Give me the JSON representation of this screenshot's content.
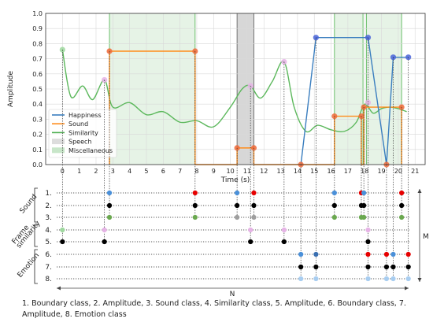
{
  "chart_data": {
    "type": "line",
    "xlabel": "Time (s)",
    "ylabel": "Amplitude",
    "xlim": [
      -1.0,
      21.6
    ],
    "ylim": [
      0.0,
      1.0
    ],
    "xticks": [
      "0",
      "1",
      "2",
      "3",
      "4",
      "5",
      "6",
      "7",
      "8",
      "9",
      "10",
      "11",
      "12",
      "13",
      "14",
      "15",
      "16",
      "17",
      "18",
      "19",
      "20",
      "21"
    ],
    "yticks": [
      "0.0",
      "0.1",
      "0.2",
      "0.3",
      "0.4",
      "0.5",
      "0.6",
      "0.7",
      "0.8",
      "0.9",
      "1.0"
    ],
    "grid": true,
    "legend_position": "middle-left",
    "legend": [
      {
        "label": "Happiness",
        "kind": "line",
        "color": "#3a7ebf"
      },
      {
        "label": "Sound",
        "kind": "line",
        "color": "#ff8c1a"
      },
      {
        "label": "Similarity",
        "kind": "line",
        "color": "#4caf50"
      },
      {
        "label": "Speech",
        "kind": "patch",
        "color": "#dddddd"
      },
      {
        "label": "Miscellaneous",
        "kind": "patch",
        "color": "#c8e6c9"
      }
    ],
    "regions": [
      {
        "kind": "Miscellaneous",
        "x0": 2.8,
        "x1": 7.9,
        "color": "#e3f2e3"
      },
      {
        "kind": "Speech",
        "x0": 10.4,
        "x1": 11.4,
        "color": "#d3d3d3"
      },
      {
        "kind": "Miscellaneous",
        "x0": 16.2,
        "x1": 17.9,
        "color": "#e3f2e3"
      },
      {
        "kind": "Miscellaneous",
        "x0": 18.1,
        "x1": 20.2,
        "color": "#e3f2e3"
      }
    ],
    "series": [
      {
        "name": "Similarity",
        "color": "#5cb85c",
        "smooth": true,
        "points": [
          [
            0,
            0.76
          ],
          [
            0.5,
            0.45
          ],
          [
            1.2,
            0.52
          ],
          [
            1.8,
            0.43
          ],
          [
            2.5,
            0.56
          ],
          [
            3,
            0.38
          ],
          [
            4,
            0.41
          ],
          [
            5,
            0.33
          ],
          [
            6,
            0.35
          ],
          [
            7,
            0.28
          ],
          [
            8,
            0.29
          ],
          [
            9,
            0.25
          ],
          [
            10,
            0.38
          ],
          [
            10.7,
            0.5
          ],
          [
            11.2,
            0.52
          ],
          [
            11.8,
            0.44
          ],
          [
            12.5,
            0.55
          ],
          [
            13.2,
            0.68
          ],
          [
            13.8,
            0.38
          ],
          [
            14.5,
            0.22
          ],
          [
            15.2,
            0.26
          ],
          [
            16,
            0.23
          ],
          [
            16.8,
            0.22
          ],
          [
            17.5,
            0.28
          ],
          [
            18,
            0.4
          ],
          [
            18.5,
            0.34
          ],
          [
            19,
            0.37
          ],
          [
            19.5,
            0.38
          ],
          [
            20,
            0.37
          ],
          [
            20.5,
            0.35
          ]
        ]
      },
      {
        "name": "Sound",
        "color": "#ff8c1a",
        "smooth": false,
        "points": [
          [
            2.8,
            0
          ],
          [
            2.8,
            0.75
          ],
          [
            7.9,
            0.75
          ],
          [
            7.9,
            0
          ],
          [
            10.4,
            0
          ],
          [
            10.4,
            0.11
          ],
          [
            11.4,
            0.11
          ],
          [
            11.4,
            0
          ],
          [
            16.2,
            0
          ],
          [
            16.2,
            0.32
          ],
          [
            17.8,
            0.32
          ],
          [
            17.8,
            0
          ],
          [
            17.95,
            0
          ],
          [
            17.95,
            0.38
          ],
          [
            20.2,
            0.38
          ],
          [
            20.2,
            0
          ]
        ]
      },
      {
        "name": "Happiness",
        "color": "#3a7ebf",
        "smooth": false,
        "points": [
          [
            14.2,
            0
          ],
          [
            15.1,
            0.84
          ],
          [
            18.2,
            0.84
          ],
          [
            19.3,
            0
          ],
          [
            19.7,
            0.71
          ],
          [
            20.6,
            0.71
          ]
        ]
      }
    ],
    "markers": [
      {
        "x": 0,
        "y": 0.76,
        "color": "#9fd89f"
      },
      {
        "x": 2.5,
        "y": 0.56,
        "color": "#e6b3e6"
      },
      {
        "x": 2.8,
        "y": 0.75,
        "color": "#ef6a3a"
      },
      {
        "x": 7.9,
        "y": 0.75,
        "color": "#ef6a3a"
      },
      {
        "x": 10.4,
        "y": 0.11,
        "color": "#ef6a3a"
      },
      {
        "x": 11.4,
        "y": 0.11,
        "color": "#ef6a3a"
      },
      {
        "x": 11.2,
        "y": 0.52,
        "color": "#e6b3e6"
      },
      {
        "x": 13.2,
        "y": 0.68,
        "color": "#e6b3e6"
      },
      {
        "x": 14.2,
        "y": 0,
        "color": "#ef6a3a"
      },
      {
        "x": 15.1,
        "y": 0.84,
        "color": "#4a64d8"
      },
      {
        "x": 16.2,
        "y": 0.32,
        "color": "#ef6a3a"
      },
      {
        "x": 17.8,
        "y": 0.32,
        "color": "#ef6a3a"
      },
      {
        "x": 17.95,
        "y": 0.38,
        "color": "#ef6a3a"
      },
      {
        "x": 18.2,
        "y": 0.84,
        "color": "#4a64d8"
      },
      {
        "x": 18.2,
        "y": 0.41,
        "color": "#e6b3e6"
      },
      {
        "x": 19.3,
        "y": 0,
        "color": "#ef6a3a"
      },
      {
        "x": 19.7,
        "y": 0.71,
        "color": "#4a64d8"
      },
      {
        "x": 20.2,
        "y": 0.38,
        "color": "#ef6a3a"
      },
      {
        "x": 20.6,
        "y": 0.71,
        "color": "#4a64d8"
      }
    ]
  },
  "diagram": {
    "groups": [
      {
        "label": "Sound",
        "rows": [
          "1.",
          "2.",
          "3."
        ]
      },
      {
        "label": "Frame\nsimilarity",
        "rows": [
          "4.",
          "5."
        ]
      },
      {
        "label": "Emotion",
        "rows": [
          "6.",
          "7.",
          "8."
        ]
      }
    ],
    "dimension_n": "N",
    "dimension_m": "M",
    "events": [
      {
        "x": 0,
        "dots": [
          null,
          null,
          null,
          "#9fd89f",
          "#000000",
          null,
          null,
          null
        ]
      },
      {
        "x": 2.5,
        "dots": [
          null,
          null,
          null,
          "#e6b3e6",
          "#000000",
          null,
          null,
          null
        ]
      },
      {
        "x": 2.8,
        "dots": [
          "#4a90d9",
          "#000000",
          "#6aa84f",
          null,
          null,
          null,
          null,
          null
        ]
      },
      {
        "x": 7.9,
        "dots": [
          "#e60000",
          "#000000",
          "#6aa84f",
          null,
          null,
          null,
          null,
          null
        ]
      },
      {
        "x": 10.4,
        "dots": [
          "#4a90d9",
          "#000000",
          "#9e9e9e",
          null,
          null,
          null,
          null,
          null
        ]
      },
      {
        "x": 11.2,
        "dots": [
          null,
          null,
          null,
          "#e6b3e6",
          "#000000",
          null,
          null,
          null
        ]
      },
      {
        "x": 11.4,
        "dots": [
          "#e60000",
          "#000000",
          "#9e9e9e",
          null,
          null,
          null,
          null,
          null
        ]
      },
      {
        "x": 13.2,
        "dots": [
          null,
          null,
          null,
          "#e6b3e6",
          "#000000",
          null,
          null,
          null
        ]
      },
      {
        "x": 14.2,
        "dots": [
          null,
          null,
          null,
          null,
          null,
          "#4a90d9",
          "#000000",
          "#a8cdf0"
        ]
      },
      {
        "x": 15.1,
        "dots": [
          null,
          null,
          null,
          null,
          null,
          "#3a6fb0",
          "#000000",
          "#a8cdf0"
        ]
      },
      {
        "x": 16.2,
        "dots": [
          "#4a90d9",
          "#000000",
          "#6aa84f",
          null,
          null,
          null,
          null,
          null
        ]
      },
      {
        "x": 17.8,
        "dots": [
          "#e60000",
          "#000000",
          "#6aa84f",
          null,
          null,
          null,
          null,
          null
        ]
      },
      {
        "x": 17.95,
        "dots": [
          "#4a90d9",
          "#000000",
          "#6aa84f",
          null,
          null,
          null,
          null,
          null
        ]
      },
      {
        "x": 18.2,
        "dots": [
          null,
          null,
          null,
          "#e6b3e6",
          "#000000",
          "#e60000",
          "#000000",
          "#a8cdf0"
        ]
      },
      {
        "x": 19.3,
        "dots": [
          null,
          null,
          null,
          null,
          null,
          "#e60000",
          "#000000",
          "#a8cdf0"
        ]
      },
      {
        "x": 19.7,
        "dots": [
          null,
          null,
          null,
          null,
          null,
          "#4a90d9",
          "#000000",
          "#a8cdf0"
        ]
      },
      {
        "x": 20.2,
        "dots": [
          "#e60000",
          "#000000",
          "#6aa84f",
          null,
          null,
          null,
          null,
          null
        ]
      },
      {
        "x": 20.6,
        "dots": [
          null,
          null,
          null,
          null,
          null,
          "#e60000",
          "#000000",
          "#a8cdf0"
        ]
      }
    ]
  },
  "caption": "1. Boundary class, 2. Amplitude, 3. Sound class, 4. Similarity class, 5. Amplitude, 6. Boundary class, 7. Amplitude, 8. Emotion class"
}
